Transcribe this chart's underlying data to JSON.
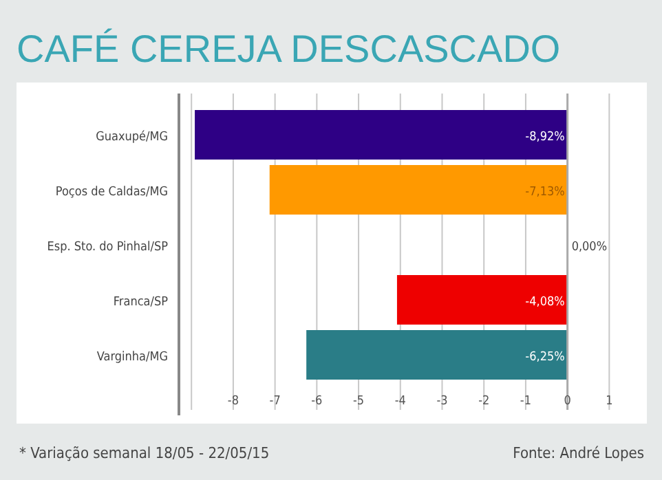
{
  "chart_data": {
    "type": "bar",
    "orientation": "horizontal",
    "title": "CAFÉ CEREJA DESCASCADO",
    "categories": [
      "Guaxupé/MG",
      "Poços de Caldas/MG",
      "Esp. Sto. do Pinhal/SP",
      "Franca/SP",
      "Varginha/MG"
    ],
    "values": [
      -8.92,
      -7.13,
      0,
      -4.08,
      -6.25
    ],
    "colors": [
      "#2e0085",
      "#ff9900",
      "#ffffff",
      "#ee0000",
      "#2a7d87"
    ],
    "value_labels": [
      "-8,92%",
      "-7,13%",
      "0,00%",
      "-4,08%",
      "-6,25%"
    ],
    "xlim": [
      -9.3,
      1.9
    ],
    "xticks": [
      {
        "value": -9,
        "label": null
      },
      -8,
      -7,
      -6,
      -5,
      -4,
      -3,
      -2,
      -1,
      0,
      1
    ],
    "grid": "x",
    "annotations": [
      "* Variação semanal 18/05 - 22/05/15",
      "Fonte: André Lopes"
    ]
  }
}
